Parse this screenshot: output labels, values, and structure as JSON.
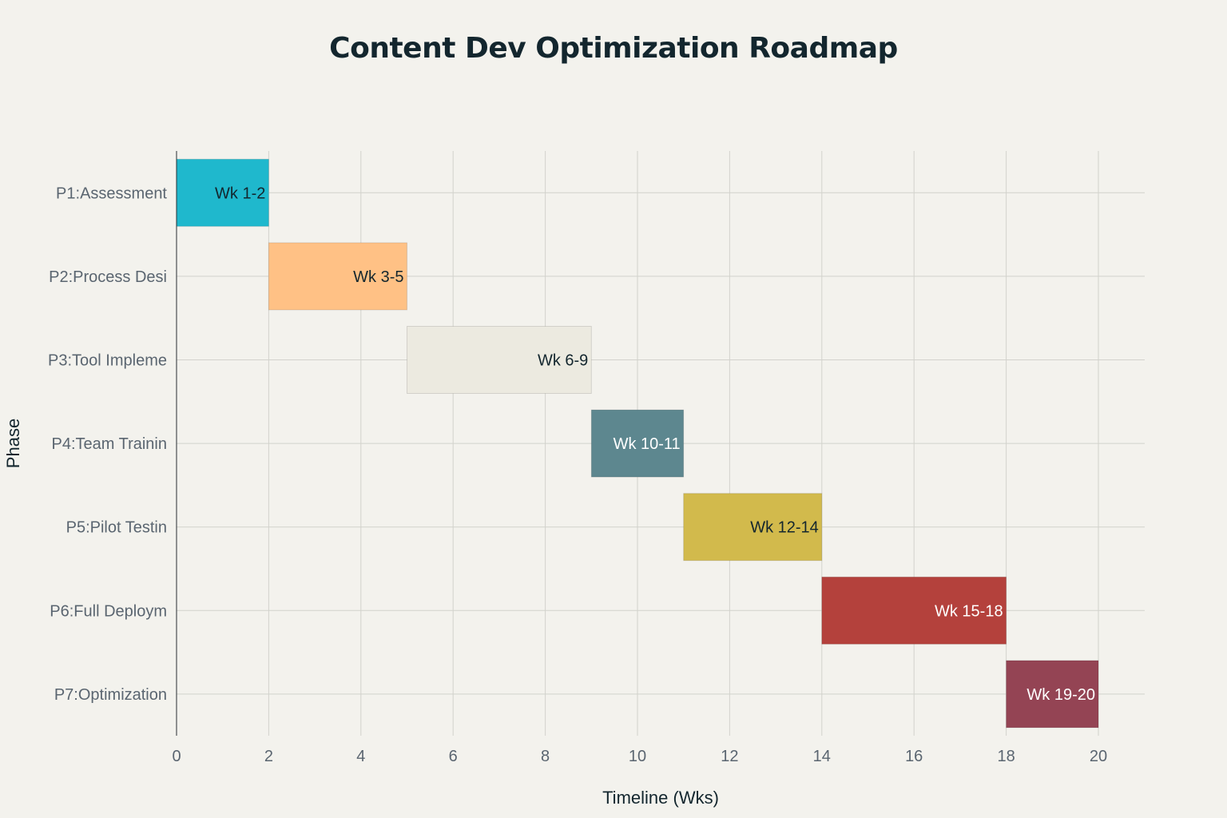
{
  "chart_data": {
    "type": "bar",
    "orientation": "horizontal-gantt",
    "title": "Content Dev Optimization Roadmap",
    "xlabel": "Timeline (Wks)",
    "ylabel": "Phase",
    "xlim": [
      0,
      21
    ],
    "xticks": [
      0,
      2,
      4,
      6,
      8,
      10,
      12,
      14,
      16,
      18,
      20
    ],
    "grid": true,
    "tasks": [
      {
        "phase": "P1:Assessment",
        "start": 0,
        "end": 2,
        "label": "Wk 1-2",
        "color": "#1fb8cd",
        "label_color": "#13262e"
      },
      {
        "phase": "P2:Process Desi",
        "start": 2,
        "end": 5,
        "label": "Wk 3-5",
        "color": "#ffc185",
        "label_color": "#13262e"
      },
      {
        "phase": "P3:Tool Impleme",
        "start": 5,
        "end": 9,
        "label": "Wk 6-9",
        "color": "#eceae0",
        "label_color": "#13262e"
      },
      {
        "phase": "P4:Team Trainin",
        "start": 9,
        "end": 11,
        "label": "Wk 10-11",
        "color": "#5d878f",
        "label_color": "#ffffff"
      },
      {
        "phase": "P5:Pilot Testin",
        "start": 11,
        "end": 14,
        "label": "Wk 12-14",
        "color": "#d2ba4c",
        "label_color": "#13262e"
      },
      {
        "phase": "P6:Full Deploym",
        "start": 14,
        "end": 18,
        "label": "Wk 15-18",
        "color": "#b4413c",
        "label_color": "#ffffff"
      },
      {
        "phase": "P7:Optimization",
        "start": 18,
        "end": 20,
        "label": "Wk 19-20",
        "color": "#944454",
        "label_color": "#ffffff"
      }
    ]
  }
}
